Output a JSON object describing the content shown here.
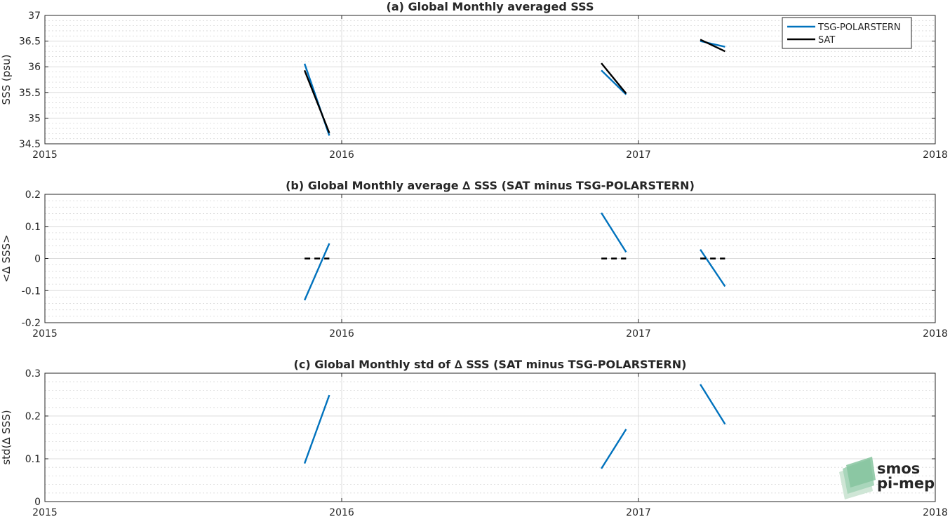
{
  "chart_data": [
    {
      "type": "line",
      "title": "(a) Global Monthly averaged SSS",
      "xlabel": "",
      "ylabel": "SSS (psu)",
      "xlim": [
        2015,
        2018
      ],
      "ylim": [
        34.5,
        37
      ],
      "xticks": [
        2015,
        2016,
        2017,
        2018
      ],
      "yticks": [
        34.5,
        35,
        35.5,
        36,
        36.5,
        37
      ],
      "grid": true,
      "minor_grid": true,
      "legend": {
        "location": "top-right",
        "entries": [
          "TSG-POLARSTERN",
          "SAT"
        ]
      },
      "series": [
        {
          "name": "TSG-POLARSTERN",
          "color": "#0072bd",
          "style": "solid",
          "segments": [
            {
              "x": [
                "2015-11",
                "2015-12"
              ],
              "y": [
                36.06,
                34.66
              ]
            },
            {
              "x": [
                "2016-11",
                "2016-12"
              ],
              "y": [
                35.93,
                35.46
              ]
            },
            {
              "x": [
                "2017-03",
                "2017-04"
              ],
              "y": [
                36.5,
                36.39
              ]
            }
          ]
        },
        {
          "name": "SAT",
          "color": "#000000",
          "style": "solid",
          "segments": [
            {
              "x": [
                "2015-11",
                "2015-12"
              ],
              "y": [
                35.93,
                34.71
              ]
            },
            {
              "x": [
                "2016-11",
                "2016-12"
              ],
              "y": [
                36.07,
                35.48
              ]
            },
            {
              "x": [
                "2017-03",
                "2017-04"
              ],
              "y": [
                36.53,
                36.3
              ]
            }
          ]
        }
      ]
    },
    {
      "type": "line",
      "title": "(b) Global Monthly average ∆ SSS (SAT minus TSG-POLARSTERN)",
      "xlabel": "",
      "ylabel": "<∆ SSS>",
      "xlim": [
        2015,
        2018
      ],
      "ylim": [
        -0.2,
        0.2
      ],
      "xticks": [
        2015,
        2016,
        2017,
        2018
      ],
      "yticks": [
        -0.2,
        -0.1,
        0,
        0.1,
        0.2
      ],
      "grid": true,
      "minor_grid": true,
      "series": [
        {
          "color": "#0072bd",
          "style": "solid",
          "segments": [
            {
              "x": [
                "2015-11",
                "2015-12"
              ],
              "y": [
                -0.13,
                0.047
              ]
            },
            {
              "x": [
                "2016-11",
                "2016-12"
              ],
              "y": [
                0.142,
                0.02
              ]
            },
            {
              "x": [
                "2017-03",
                "2017-04"
              ],
              "y": [
                0.028,
                -0.087
              ]
            }
          ]
        },
        {
          "color": "#000000",
          "style": "dashed",
          "segments": [
            {
              "x": [
                "2015-11",
                "2015-12"
              ],
              "y": [
                0,
                0
              ]
            },
            {
              "x": [
                "2016-11",
                "2016-12"
              ],
              "y": [
                0,
                0
              ]
            },
            {
              "x": [
                "2017-03",
                "2017-04"
              ],
              "y": [
                0,
                0
              ]
            }
          ]
        }
      ]
    },
    {
      "type": "line",
      "title": "(c) Global Monthly std of ∆ SSS (SAT minus TSG-POLARSTERN)",
      "xlabel": "",
      "ylabel": "std(∆ SSS)",
      "xlim": [
        2015,
        2018
      ],
      "ylim": [
        0,
        0.3
      ],
      "xticks": [
        2015,
        2016,
        2017,
        2018
      ],
      "yticks": [
        0,
        0.1,
        0.2,
        0.3
      ],
      "grid": true,
      "minor_grid": true,
      "series": [
        {
          "color": "#0072bd",
          "style": "solid",
          "segments": [
            {
              "x": [
                "2015-11",
                "2015-12"
              ],
              "y": [
                0.089,
                0.249
              ]
            },
            {
              "x": [
                "2016-11",
                "2016-12"
              ],
              "y": [
                0.077,
                0.169
              ]
            },
            {
              "x": [
                "2017-03",
                "2017-04"
              ],
              "y": [
                0.274,
                0.181
              ]
            }
          ]
        }
      ]
    }
  ],
  "logo": {
    "line1": "smos",
    "line2": "pi-mep"
  }
}
